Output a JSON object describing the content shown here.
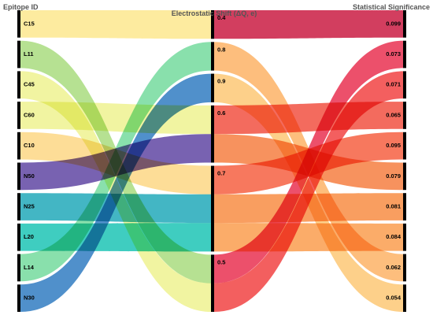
{
  "headers": {
    "left": "Epitope ID",
    "middle": "Electrostatic Shift (ΔQ, e)",
    "right": "Statistical Significance"
  },
  "left_nodes": [
    {
      "id": "C15",
      "color": "#fde68a"
    },
    {
      "id": "L11",
      "color": "#a6db7a"
    },
    {
      "id": "C45",
      "color": "#eef28c"
    },
    {
      "id": "C60",
      "color": "#eef28c"
    },
    {
      "id": "C10",
      "color": "#fdd680"
    },
    {
      "id": "N50",
      "color": "#5a3fa0"
    },
    {
      "id": "N25",
      "color": "#1aa6b7"
    },
    {
      "id": "L20",
      "color": "#15c2b2"
    },
    {
      "id": "L14",
      "color": "#6fd99a"
    },
    {
      "id": "N30",
      "color": "#2a77c0"
    }
  ],
  "middle_nodes": [
    {
      "id": "0.4",
      "color": "#fde68a"
    },
    {
      "id": "0.8",
      "color": "#6fd99a"
    },
    {
      "id": "0.9",
      "color": "#2a77c0"
    },
    {
      "id": "0.6",
      "color": "#fdd680"
    },
    {
      "id": "0.7",
      "color": "#1aa6b7"
    },
    {
      "id": "0.5",
      "color": "#d4ed8a"
    }
  ],
  "right_nodes": [
    {
      "id": "0.099",
      "color": "#c8143c"
    },
    {
      "id": "0.073",
      "color": "#e8294b"
    },
    {
      "id": "0.071",
      "color": "#f03c3c"
    },
    {
      "id": "0.065",
      "color": "#f04a3a"
    },
    {
      "id": "0.095",
      "color": "#f55a3a"
    },
    {
      "id": "0.079",
      "color": "#f57a3a"
    },
    {
      "id": "0.081",
      "color": "#f8893d"
    },
    {
      "id": "0.084",
      "color": "#fa9a48"
    },
    {
      "id": "0.062",
      "color": "#fcb060"
    },
    {
      "id": "0.054",
      "color": "#fdc670"
    }
  ],
  "links_left_middle": [
    {
      "source": "C15",
      "target": "0.4",
      "value": 1,
      "color": "#fde68a"
    },
    {
      "source": "L11",
      "target": "0.5",
      "value": 1,
      "color": "#a6db7a"
    },
    {
      "source": "C45",
      "target": "0.5",
      "value": 1,
      "color": "#eef28c"
    },
    {
      "source": "C60",
      "target": "0.6",
      "value": 1,
      "color": "#eef28c"
    },
    {
      "source": "C10",
      "target": "0.7",
      "value": 1,
      "color": "#fdd680"
    },
    {
      "source": "N50",
      "target": "0.6",
      "value": 1,
      "color": "#5a3fa0"
    },
    {
      "source": "N25",
      "target": "0.7",
      "value": 1,
      "color": "#1aa6b7"
    },
    {
      "source": "L20",
      "target": "0.7",
      "value": 1,
      "color": "#15c2b2"
    },
    {
      "source": "L14",
      "target": "0.8",
      "value": 1,
      "color": "#6fd99a"
    },
    {
      "source": "N30",
      "target": "0.9",
      "value": 1,
      "color": "#2a77c0"
    }
  ],
  "links_middle_right": [
    {
      "source": "0.4",
      "target": "0.099",
      "value": 1,
      "color": "#c8143c"
    },
    {
      "source": "0.8",
      "target": "0.062",
      "value": 1,
      "color": "#fcb060"
    },
    {
      "source": "0.9",
      "target": "0.054",
      "value": 1,
      "color": "#fdc670"
    },
    {
      "source": "0.6",
      "target": "0.065",
      "value": 1,
      "color": "#f04a3a"
    },
    {
      "source": "0.6",
      "target": "0.079",
      "value": 1,
      "color": "#f57a3a"
    },
    {
      "source": "0.7",
      "target": "0.095",
      "value": 1,
      "color": "#f55a3a"
    },
    {
      "source": "0.7",
      "target": "0.081",
      "value": 1,
      "color": "#f8893d"
    },
    {
      "source": "0.7",
      "target": "0.084",
      "value": 1,
      "color": "#fa9a48"
    },
    {
      "source": "0.5",
      "target": "0.073",
      "value": 1,
      "color": "#e8294b"
    },
    {
      "source": "0.5",
      "target": "0.071",
      "value": 1,
      "color": "#f03c3c"
    }
  ]
}
